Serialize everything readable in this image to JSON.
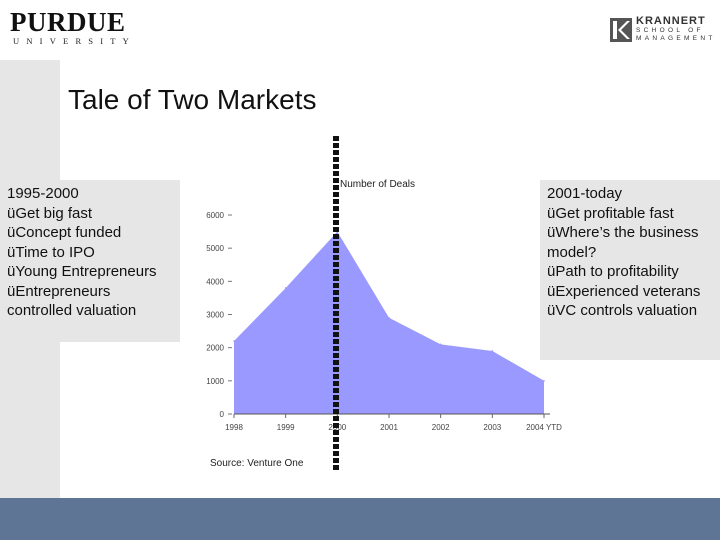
{
  "header": {
    "purdue_name": "PURDUE",
    "purdue_sub": "UNIVERSITY",
    "krannert_name": "KRANNERT",
    "krannert_line1": "SCHOOL OF",
    "krannert_line2": "MANAGEMENT"
  },
  "slide": {
    "title": "Tale of Two Markets",
    "left_box": {
      "lines": [
        "1995-2000",
        "üGet big fast",
        "üConcept funded",
        "üTime to IPO",
        "üYoung Entrepreneurs",
        "üEntrepreneurs",
        "controlled valuation"
      ]
    },
    "right_box": {
      "lines": [
        "2001-today",
        "üGet profitable fast",
        "üWhere’s the business",
        "model?",
        "üPath to profitability",
        "üExperienced veterans",
        "üVC controls valuation"
      ]
    }
  },
  "chart_data": {
    "type": "area",
    "title": "Number of Deals",
    "categories": [
      "1998",
      "1999",
      "2000",
      "2001",
      "2002",
      "2003",
      "2004 YTD"
    ],
    "values": [
      2200,
      3800,
      5500,
      2900,
      2100,
      1900,
      1000
    ],
    "y_ticks": [
      0,
      1000,
      2000,
      3000,
      4000,
      5000,
      6000
    ],
    "ylim": [
      0,
      6000
    ],
    "xlabel": "",
    "ylabel": "",
    "fill_color": "#9999ff",
    "source": "Source:  Venture One"
  }
}
